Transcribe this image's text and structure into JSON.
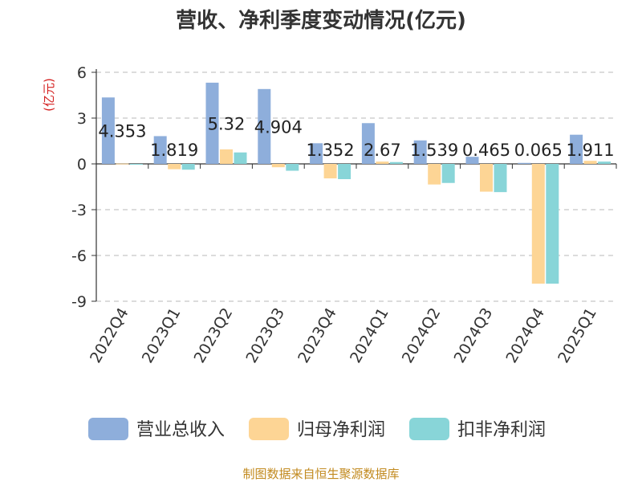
{
  "chart_data": {
    "type": "bar",
    "title": "营收、净利季度变动情况(亿元)",
    "unit_label": "(亿元)",
    "source": "制图数据来自恒生聚源数据库",
    "categories": [
      "2022Q4",
      "2023Q1",
      "2023Q2",
      "2023Q3",
      "2023Q4",
      "2024Q1",
      "2024Q2",
      "2024Q3",
      "2024Q4",
      "2025Q1"
    ],
    "ylim": [
      -9,
      6
    ],
    "yticks": [
      6,
      3,
      0,
      -3,
      -6,
      -9
    ],
    "grid": true,
    "legend_position": "bottom",
    "series": [
      {
        "name": "营业总收入",
        "color": "#8eaedb",
        "values": [
          4.353,
          1.819,
          5.32,
          4.904,
          1.352,
          2.67,
          1.539,
          0.465,
          0.065,
          1.911
        ],
        "labels": [
          "4.353",
          "1.819",
          "5.32",
          "4.904",
          "1.352",
          "2.67",
          "1.539",
          "0.465",
          "0.065",
          "1.911"
        ]
      },
      {
        "name": "归母净利润",
        "color": "#fdd595",
        "values": [
          0.02,
          -0.35,
          0.95,
          -0.22,
          -0.95,
          0.15,
          -1.35,
          -1.82,
          -7.85,
          0.2
        ]
      },
      {
        "name": "扣非净利润",
        "color": "#88d5d8",
        "values": [
          -0.05,
          -0.38,
          0.75,
          -0.45,
          -1.0,
          0.12,
          -1.25,
          -1.85,
          -7.85,
          0.15
        ]
      }
    ]
  }
}
